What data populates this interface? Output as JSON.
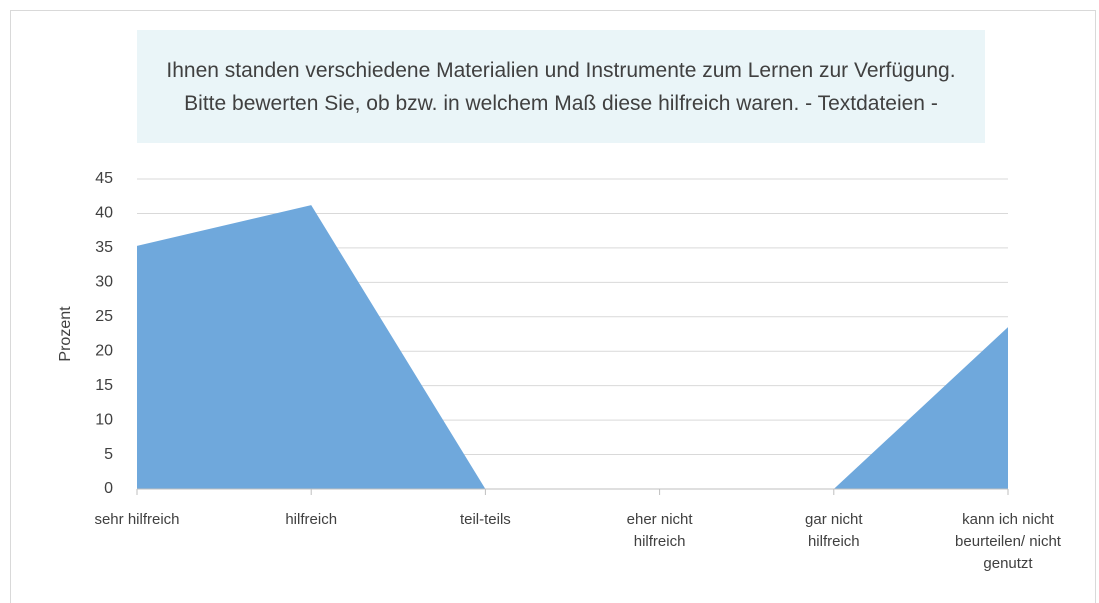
{
  "chart_data": {
    "type": "area",
    "title": "Ihnen standen verschiedene Materialien und Instrumente zum Lernen zur Verfügung. Bitte bewerten Sie, ob bzw. in welchem Maß diese hilfreich waren. - Textdateien -",
    "ylabel": "Prozent",
    "categories": [
      "sehr hilfreich",
      "hilfreich",
      "teil-teils",
      "eher nicht hilfreich",
      "gar nicht hilfreich",
      "kann ich nicht beurteilen/ nicht genutzt"
    ],
    "values": [
      35.3,
      41.2,
      0,
      0,
      0,
      23.5
    ],
    "color": "#6fa8dc",
    "ylim": [
      0,
      45
    ],
    "yticks": [
      0,
      5,
      10,
      15,
      20,
      25,
      30,
      35,
      40,
      45
    ],
    "grid": true
  }
}
